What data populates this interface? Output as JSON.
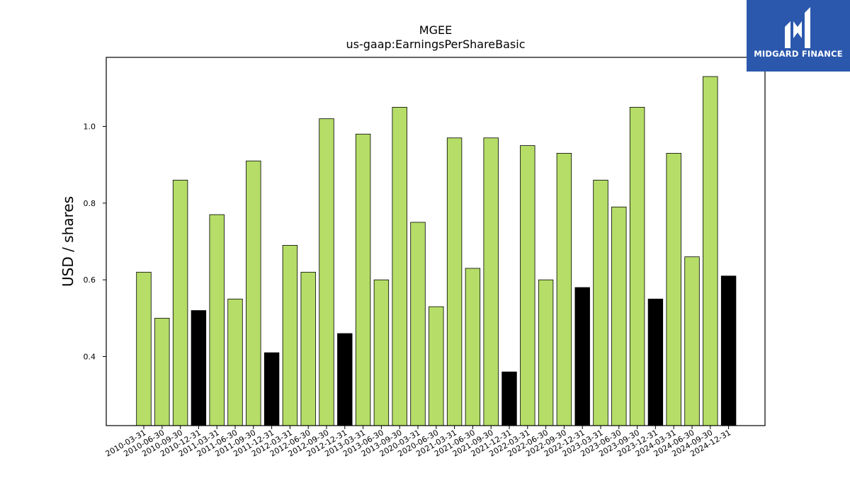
{
  "brand": {
    "name": "MIDGARD FINANCE"
  },
  "colors": {
    "bar_regular": "#b5dd67",
    "bar_q4": "#000000",
    "logo_bg": "#2b58ad"
  },
  "chart_data": {
    "type": "bar",
    "title": "MGEE",
    "subtitle": "us-gaap:EarningsPerShareBasic",
    "xlabel": "",
    "ylabel": "USD / shares",
    "ylim": [
      0.22,
      1.18
    ],
    "yticks": [
      0.4,
      0.6,
      0.8,
      1.0
    ],
    "ytick_labels": [
      "0.4",
      "0.6",
      "0.8",
      "1.0"
    ],
    "grid": false,
    "legend": "none",
    "categories": [
      "2010-03-31",
      "2010-06-30",
      "2010-09-30",
      "2010-12-31",
      "2011-03-31",
      "2011-06-30",
      "2011-09-30",
      "2011-12-31",
      "2012-03-31",
      "2012-06-30",
      "2012-09-30",
      "2012-12-31",
      "2013-03-31",
      "2013-06-30",
      "2013-09-30",
      "2020-03-31",
      "2020-06-30",
      "2021-03-31",
      "2021-06-30",
      "2021-09-30",
      "2021-12-31",
      "2022-03-31",
      "2022-06-30",
      "2022-09-30",
      "2022-12-31",
      "2023-03-31",
      "2023-06-30",
      "2023-09-30",
      "2023-12-31",
      "2024-03-31",
      "2024-06-30",
      "2024-09-30",
      "2024-12-31"
    ],
    "values": [
      0.62,
      0.5,
      0.86,
      0.52,
      0.77,
      0.55,
      0.91,
      0.41,
      0.69,
      0.62,
      1.02,
      0.46,
      0.98,
      0.6,
      1.05,
      0.75,
      0.53,
      0.97,
      0.63,
      0.97,
      0.36,
      0.95,
      0.6,
      0.93,
      0.58,
      0.86,
      0.79,
      1.05,
      0.55,
      0.93,
      0.66,
      1.13,
      0.61
    ]
  }
}
